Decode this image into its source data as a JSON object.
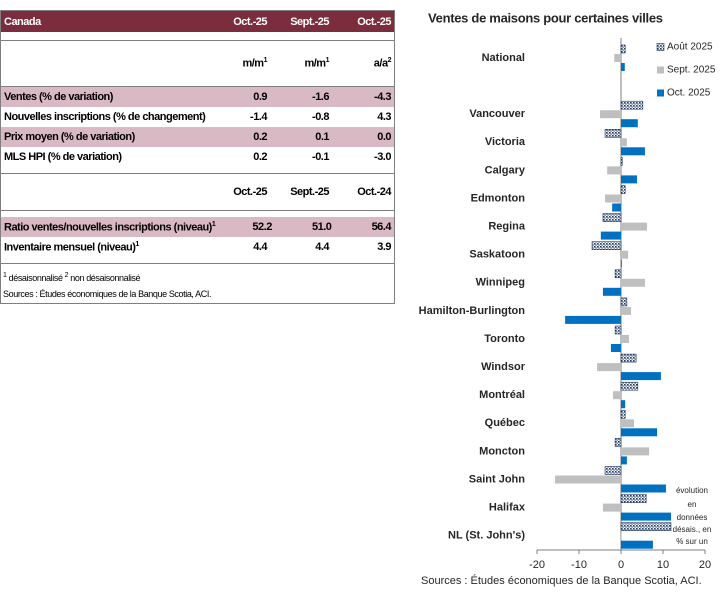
{
  "table": {
    "header": [
      "Canada",
      "Oct.-25",
      "Sept.-25",
      "Oct.-25"
    ],
    "units": [
      {
        "text": "m/m",
        "sup": "1"
      },
      {
        "text": "m/m",
        "sup": "1"
      },
      {
        "text": "a/a",
        "sup": "2"
      }
    ],
    "rows": [
      {
        "label": "Ventes (% de variation)",
        "values": [
          "0.9",
          "-1.6",
          "-4.3"
        ]
      },
      {
        "label": "Nouvelles inscriptions (% de changement)",
        "values": [
          "-1.4",
          "-0.8",
          "4.3"
        ]
      },
      {
        "label": "Prix moyen (% de variation)",
        "values": [
          "0.2",
          "0.1",
          "0.0"
        ]
      },
      {
        "label": "MLS HPI (% de variation)",
        "values": [
          "0.2",
          "-0.1",
          "-3.0"
        ]
      }
    ],
    "header2": [
      "Oct.-25",
      "Sept.-25",
      "Oct.-24"
    ],
    "rows2": [
      {
        "label": "Ratio ventes/nouvelles inscriptions (niveau)",
        "sup": "1",
        "values": [
          "52.2",
          "51.0",
          "56.4"
        ]
      },
      {
        "label": "Inventaire mensuel (niveau)",
        "sup": "1",
        "values": [
          "4.4",
          "4.4",
          "3.9"
        ]
      }
    ],
    "footnotes": [
      {
        "sup": "1",
        "text": "désaisonnalisé"
      },
      {
        "sup": "2",
        "text": "non désaisonnalisé"
      }
    ],
    "source": "Sources : Études économiques de la Banque Scotia, ACI."
  },
  "chart_data": {
    "type": "hbar",
    "title": "Ventes de maisons pour certaines villes",
    "categories": [
      "National",
      null,
      "Vancouver",
      "Victoria",
      "Calgary",
      "Edmonton",
      "Regina",
      "Saskatoon",
      "Winnipeg",
      "Hamilton-Burlington",
      "Toronto",
      "Windsor",
      "Montréal",
      "Québec",
      "Moncton",
      "Saint John",
      "Halifax",
      "NL (St. John's)"
    ],
    "series": [
      {
        "name": "Août 2025",
        "color": "#1f3864",
        "pattern": "dots",
        "values": [
          1.0,
          null,
          5.2,
          -3.8,
          0.3,
          1.0,
          -4.3,
          -6.9,
          -1.4,
          1.4,
          -1.4,
          3.6,
          4.0,
          1.0,
          -1.4,
          -3.8,
          6.0,
          11.9
        ]
      },
      {
        "name": "Sept. 2025",
        "color": "#bfbfbf",
        "values": [
          -1.6,
          null,
          -5.0,
          1.4,
          -3.3,
          -3.8,
          6.2,
          1.7,
          5.7,
          2.4,
          1.9,
          -5.7,
          -1.9,
          3.1,
          6.7,
          -15.7,
          -4.3,
          0.1
        ]
      },
      {
        "name": "Oct. 2025",
        "color": "#0070c0",
        "values": [
          0.9,
          null,
          4.0,
          5.7,
          3.8,
          -2.1,
          -4.8,
          0.2,
          -4.3,
          -13.3,
          -2.4,
          9.5,
          1.0,
          8.6,
          1.4,
          10.7,
          11.9,
          7.6
        ]
      }
    ],
    "xlim": [
      -20,
      20
    ],
    "xticks": [
      -20,
      -10,
      0,
      10,
      20
    ],
    "legend": "top-right",
    "annotation": [
      "évolution",
      "en",
      "données",
      "désais., en",
      "% sur un"
    ],
    "source": "Sources : Études économiques de la Banque Scotia, ACI."
  }
}
